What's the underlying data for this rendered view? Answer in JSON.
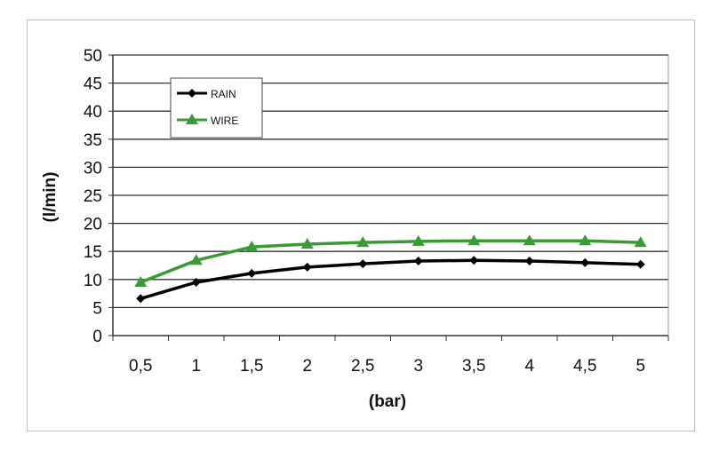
{
  "chart_data": {
    "type": "line",
    "title": "",
    "xlabel": "(bar)",
    "ylabel": "(l/min)",
    "categories": [
      "0,5",
      "1",
      "1,5",
      "2",
      "2,5",
      "3",
      "3,5",
      "4",
      "4,5",
      "5"
    ],
    "ylim": [
      0,
      50
    ],
    "yticks": [
      "0",
      "5",
      "10",
      "15",
      "20",
      "25",
      "30",
      "35",
      "40",
      "45",
      "50"
    ],
    "grid": true,
    "legend_position": "top-left",
    "series": [
      {
        "name": "RAIN",
        "color": "#000000",
        "marker": "diamond",
        "values": [
          6.6,
          9.5,
          11.1,
          12.2,
          12.8,
          13.3,
          13.4,
          13.3,
          13.0,
          12.7
        ]
      },
      {
        "name": "WIRE",
        "color": "#3a9a35",
        "marker": "triangle",
        "values": [
          9.5,
          13.4,
          15.8,
          16.3,
          16.6,
          16.8,
          16.9,
          16.9,
          16.9,
          16.6
        ]
      }
    ]
  }
}
